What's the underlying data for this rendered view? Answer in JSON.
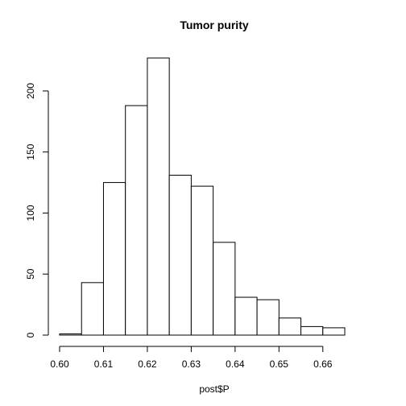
{
  "chart_data": {
    "type": "bar",
    "title": "Tumor purity",
    "xlabel": "post$P",
    "ylabel": "",
    "bins": [
      [
        0.6,
        0.605
      ],
      [
        0.605,
        0.61
      ],
      [
        0.61,
        0.615
      ],
      [
        0.615,
        0.62
      ],
      [
        0.62,
        0.625
      ],
      [
        0.625,
        0.63
      ],
      [
        0.63,
        0.635
      ],
      [
        0.635,
        0.64
      ],
      [
        0.64,
        0.645
      ],
      [
        0.645,
        0.65
      ],
      [
        0.65,
        0.655
      ],
      [
        0.655,
        0.66
      ],
      [
        0.66,
        0.665
      ]
    ],
    "values": [
      1,
      43,
      125,
      188,
      227,
      131,
      122,
      76,
      31,
      29,
      14,
      7,
      6
    ],
    "xlim": [
      0.6,
      0.665
    ],
    "ylim": [
      0,
      227
    ],
    "x_ticks": [
      "0.60",
      "0.61",
      "0.62",
      "0.63",
      "0.64",
      "0.65",
      "0.66"
    ],
    "y_ticks": [
      "0",
      "50",
      "100",
      "150",
      "200"
    ],
    "grid": false
  }
}
